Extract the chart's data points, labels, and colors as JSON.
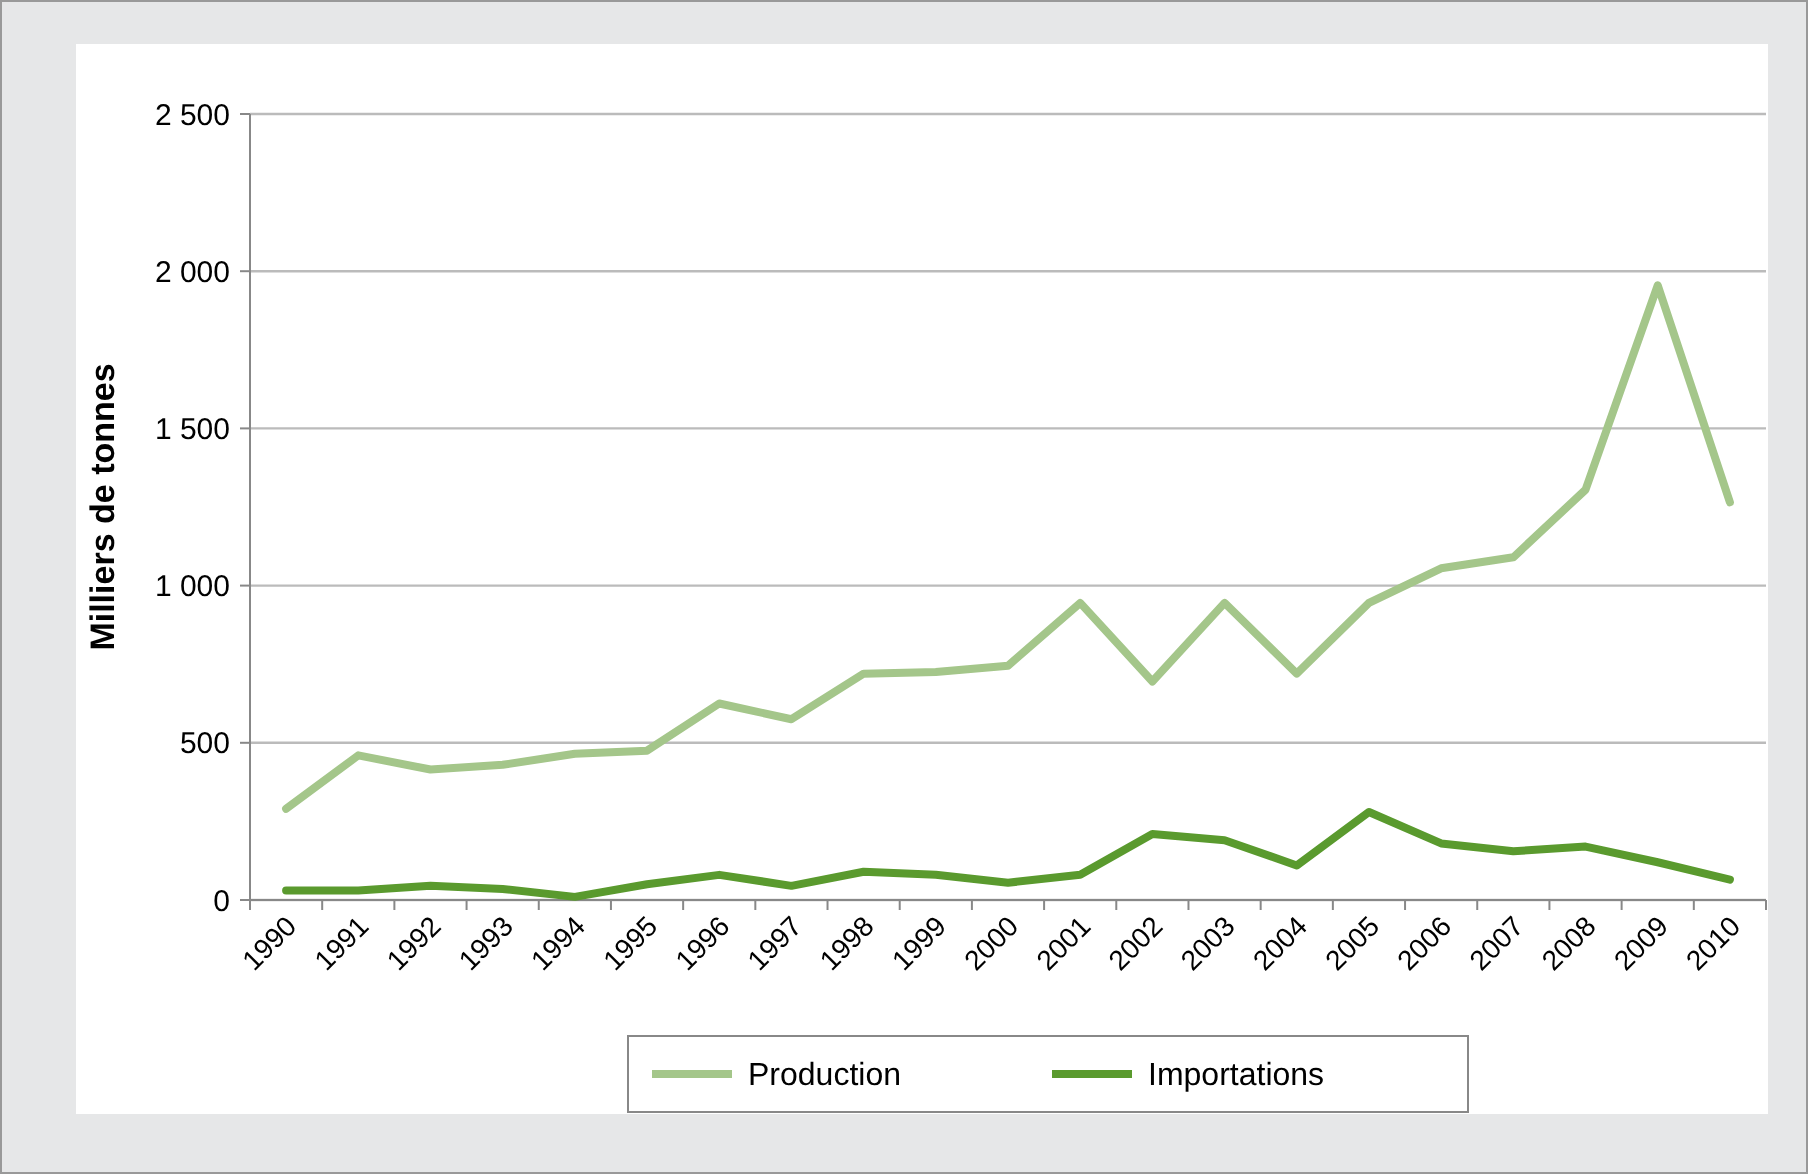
{
  "chart_data": {
    "type": "line",
    "ylabel": "Milliers de tonnes",
    "categories": [
      "1990",
      "1991",
      "1992",
      "1993",
      "1994",
      "1995",
      "1996",
      "1997",
      "1998",
      "1999",
      "2000",
      "2001",
      "2002",
      "2003",
      "2004",
      "2005",
      "2006",
      "2007",
      "2008",
      "2009",
      "2010"
    ],
    "series": [
      {
        "name": "Production",
        "color": "#a4c68a",
        "values": [
          290,
          460,
          415,
          430,
          465,
          475,
          625,
          575,
          720,
          725,
          745,
          945,
          695,
          945,
          720,
          945,
          1055,
          1090,
          1305,
          1955,
          1265
        ]
      },
      {
        "name": "Importations",
        "color": "#5a9a2e",
        "values": [
          30,
          30,
          45,
          35,
          10,
          50,
          80,
          45,
          90,
          80,
          55,
          80,
          210,
          190,
          110,
          280,
          180,
          155,
          170,
          120,
          65
        ]
      }
    ],
    "ylim": [
      0,
      2500
    ],
    "yticks": [
      0,
      500,
      {
        "value": 1000,
        "label": "1 000"
      },
      {
        "value": 1500,
        "label": "1 500"
      },
      {
        "value": 2000,
        "label": "2 000"
      },
      {
        "value": 2500,
        "label": "2 500"
      }
    ],
    "grid": "y",
    "legend": "bottom",
    "marker": "none",
    "line_style": "solid"
  }
}
